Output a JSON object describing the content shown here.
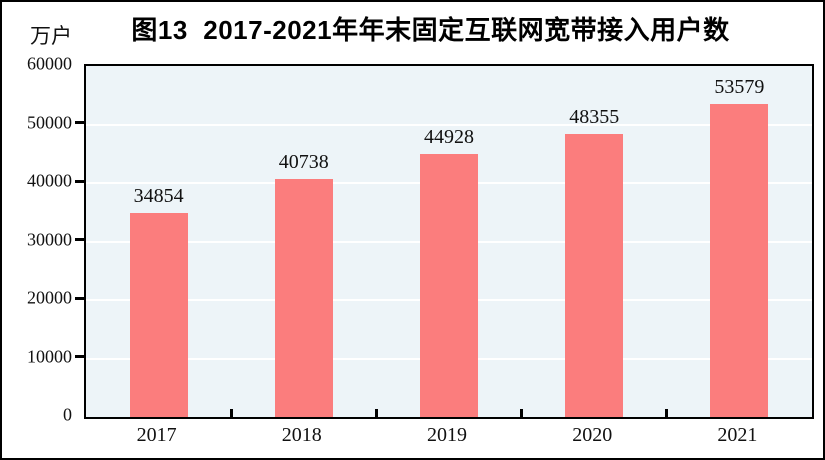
{
  "chart_data": {
    "type": "bar",
    "title": "图13  2017-2021年年末固定互联网宽带接入用户数",
    "ylabel": "万户",
    "xlabel": "",
    "categories": [
      "2017",
      "2018",
      "2019",
      "2020",
      "2021"
    ],
    "values": [
      34854,
      40738,
      44928,
      48355,
      53579
    ],
    "data_labels": [
      "34854",
      "40738",
      "44928",
      "48355",
      "53579"
    ],
    "ylim": [
      0,
      60000
    ],
    "ytick_step": 10000,
    "yticks": [
      0,
      10000,
      20000,
      30000,
      40000,
      50000,
      60000
    ],
    "grid": true,
    "legend_position": "none",
    "bar_color": "#fb7d7d",
    "plot_background": "#edf4f8",
    "grid_color": "#ffffff",
    "axis_color": "#000000"
  }
}
